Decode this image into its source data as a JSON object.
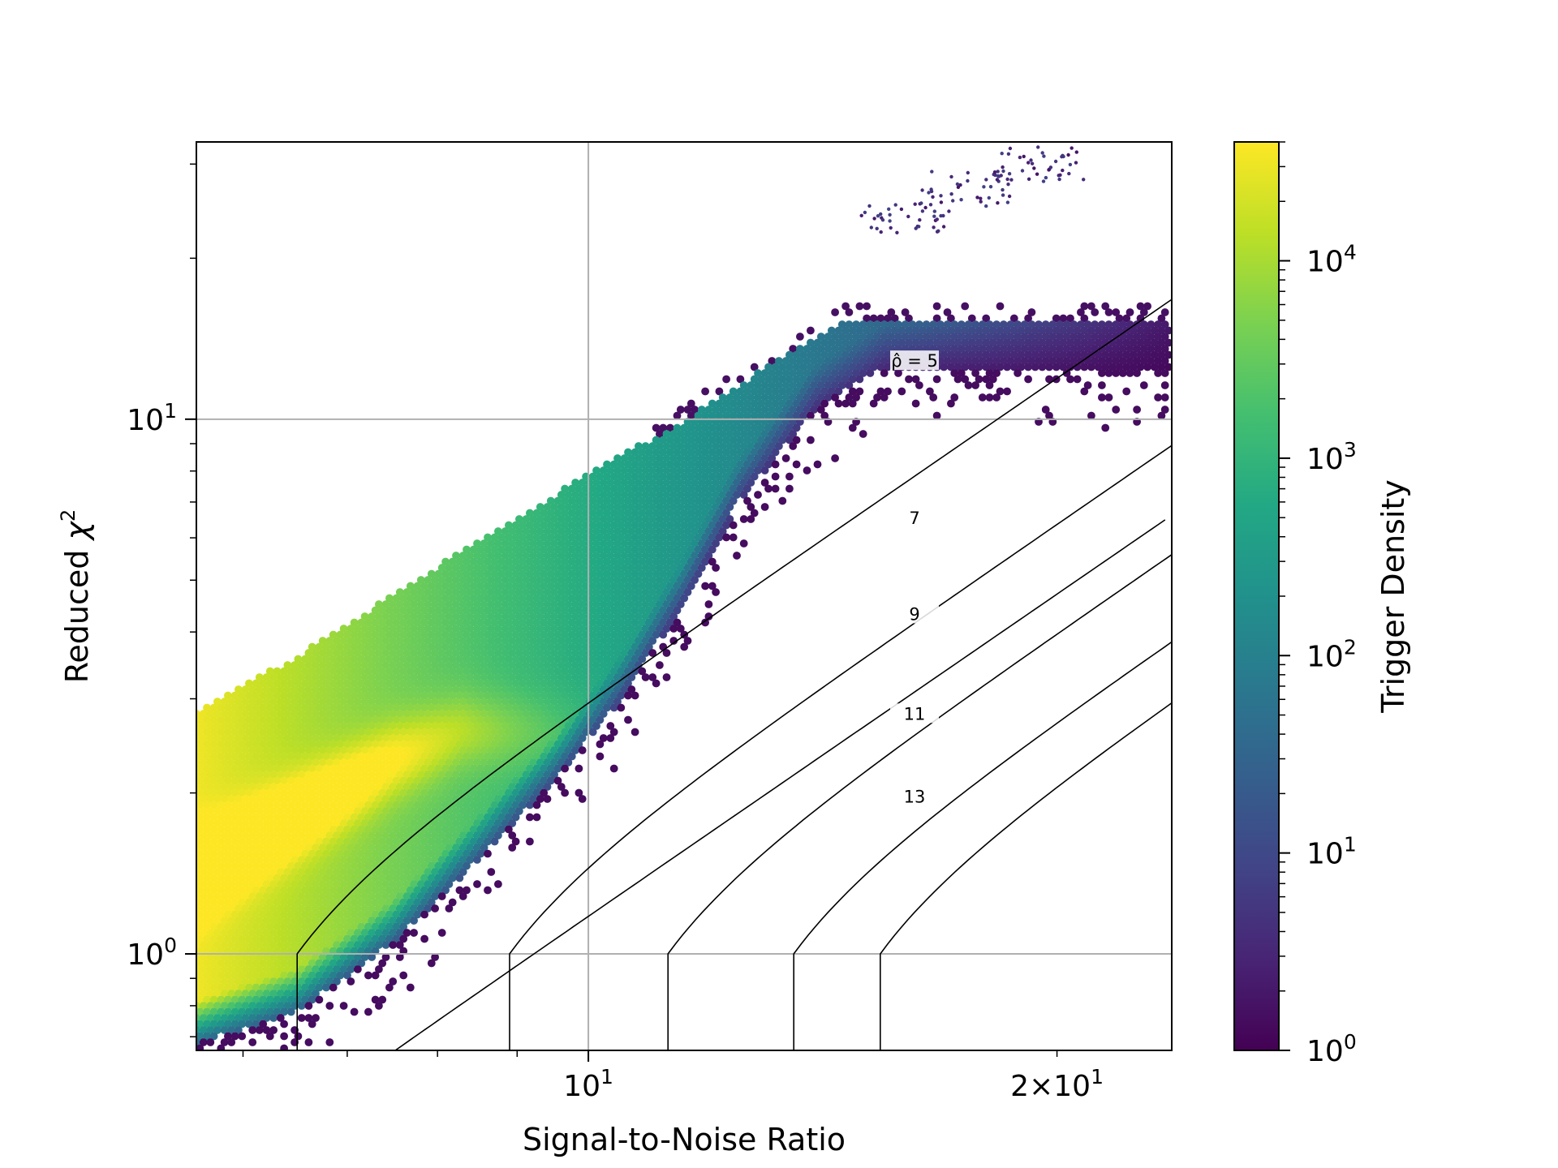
{
  "chart_data": {
    "type": "heatmap",
    "title": "",
    "xlabel": "Signal-to-Noise Ratio",
    "ylabel": "Reduced χ²",
    "ylabel_text": "Reduced ",
    "ylabel_symbol": "χ",
    "ylabel_sup": "2",
    "xscale": "log",
    "yscale": "log",
    "xlim": [
      5.6,
      23.7
    ],
    "ylim": [
      0.66,
      33
    ],
    "grid": true,
    "x_major_ticks": [
      {
        "value": 10,
        "base": "10",
        "exp": "1"
      }
    ],
    "x_minor_ticks": [
      {
        "value": 20,
        "prefix": "2×",
        "base": "10",
        "exp": "1"
      }
    ],
    "x_minor_ticks_unlabeled": [
      6,
      7,
      8,
      9
    ],
    "y_major_ticks": [
      {
        "value": 1,
        "base": "10",
        "exp": "0"
      },
      {
        "value": 10,
        "base": "10",
        "exp": "1"
      }
    ],
    "y_minor_ticks_unlabeled": [
      0.7,
      0.8,
      0.9,
      2,
      3,
      4,
      5,
      6,
      7,
      8,
      9,
      20,
      30
    ],
    "colorbar": {
      "label": "Trigger Density",
      "scale": "log",
      "range": [
        1,
        40000
      ],
      "colormap": "viridis",
      "ticks": [
        {
          "value": 1,
          "base": "10",
          "exp": "0"
        },
        {
          "value": 10,
          "base": "10",
          "exp": "1"
        },
        {
          "value": 100,
          "base": "10",
          "exp": "2"
        },
        {
          "value": 1000,
          "base": "10",
          "exp": "3"
        },
        {
          "value": 10000,
          "base": "10",
          "exp": "4"
        }
      ]
    },
    "density_region": {
      "description_points_upper_edge": [
        [
          5.6,
          2.85
        ],
        [
          6.5,
          3.6
        ],
        [
          8,
          5.3
        ],
        [
          10,
          7.9
        ],
        [
          11.5,
          9.9
        ],
        [
          13,
          12.5
        ],
        [
          14.5,
          15.2
        ]
      ],
      "description_points_lower_edge": [
        [
          5.6,
          0.68
        ],
        [
          6.5,
          0.78
        ],
        [
          7.5,
          1.05
        ],
        [
          8.5,
          1.5
        ],
        [
          9.5,
          2.1
        ],
        [
          10.5,
          3.0
        ],
        [
          11.5,
          4.5
        ],
        [
          12.5,
          7.0
        ],
        [
          14,
          10.5
        ],
        [
          15.5,
          12.5
        ]
      ],
      "peak_density_ridge": [
        [
          5.6,
          1.4
        ],
        [
          6.5,
          1.8
        ],
        [
          7.5,
          2.3
        ],
        [
          8.3,
          2.6
        ]
      ],
      "sparse_tail_cluster": [
        [
          16,
          24
        ],
        [
          17.5,
          27
        ],
        [
          19.5,
          30
        ]
      ]
    },
    "contour_levels": [
      {
        "level": 5,
        "label": "ρ̂ = 5",
        "hat_symbol": "ρ̂",
        "eq_text": " = 5"
      },
      {
        "level": 7,
        "label": "7"
      },
      {
        "level": 9,
        "label": "9"
      },
      {
        "level": 11,
        "label": "11"
      },
      {
        "level": 13,
        "label": "13"
      }
    ],
    "contour_vertical_snr": [
      {
        "level": 5,
        "x": 6.5
      },
      {
        "level": 7,
        "x": 8.9
      },
      {
        "level": 9,
        "x": 11.25
      },
      {
        "level": 11,
        "x": 13.55
      },
      {
        "level": 13,
        "x": 15.4
      }
    ],
    "colors": {
      "line": "#000000",
      "grid": "#b0b0b0",
      "background": "#ffffff"
    }
  }
}
